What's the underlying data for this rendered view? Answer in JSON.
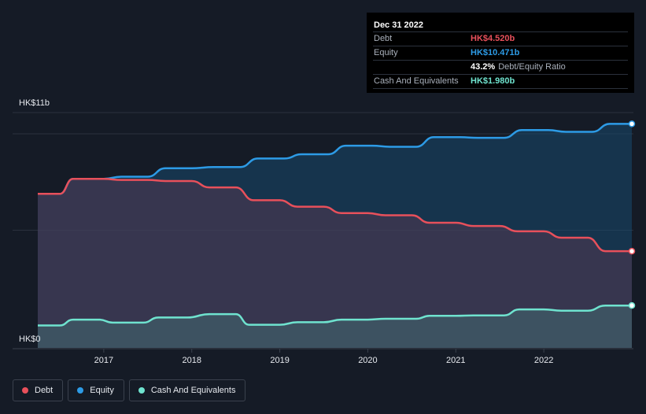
{
  "tooltip": {
    "date": "Dec 31 2022",
    "rows": [
      {
        "label": "Debt",
        "value": "HK$4.520b",
        "color": "#e8505b"
      },
      {
        "label": "Equity",
        "value": "HK$10.471b",
        "color": "#2d9be6"
      },
      {
        "label": "",
        "value": "43.2%",
        "extra": "Debt/Equity Ratio",
        "color": "#ffffff"
      },
      {
        "label": "Cash And Equivalents",
        "value": "HK$1.980b",
        "color": "#6fe3cf"
      }
    ]
  },
  "legend": [
    {
      "label": "Debt",
      "color": "#e8505b"
    },
    {
      "label": "Equity",
      "color": "#2d9be6"
    },
    {
      "label": "Cash And Equivalents",
      "color": "#6fe3cf"
    }
  ],
  "chart_data": {
    "type": "area",
    "title": "",
    "xlabel": "",
    "ylabel": "",
    "y_ticks": [
      "HK$0",
      "HK$11b"
    ],
    "ylim": [
      0,
      11
    ],
    "xlim": [
      2016.25,
      2023.0
    ],
    "x_ticks": [
      "2017",
      "2018",
      "2019",
      "2020",
      "2021",
      "2022"
    ],
    "grid": true,
    "legend_position": "bottom-left",
    "series": [
      {
        "name": "Equity",
        "color": "#2d9be6",
        "points": [
          [
            2016.25,
            7.2
          ],
          [
            2016.5,
            7.2
          ],
          [
            2016.65,
            7.9
          ],
          [
            2017.0,
            7.9
          ],
          [
            2017.2,
            8.0
          ],
          [
            2017.5,
            8.0
          ],
          [
            2017.7,
            8.4
          ],
          [
            2018.0,
            8.4
          ],
          [
            2018.25,
            8.45
          ],
          [
            2018.55,
            8.45
          ],
          [
            2018.75,
            8.85
          ],
          [
            2019.05,
            8.85
          ],
          [
            2019.25,
            9.05
          ],
          [
            2019.55,
            9.05
          ],
          [
            2019.75,
            9.45
          ],
          [
            2020.05,
            9.45
          ],
          [
            2020.25,
            9.4
          ],
          [
            2020.55,
            9.4
          ],
          [
            2020.75,
            9.85
          ],
          [
            2021.05,
            9.85
          ],
          [
            2021.25,
            9.82
          ],
          [
            2021.55,
            9.82
          ],
          [
            2021.75,
            10.18
          ],
          [
            2022.05,
            10.18
          ],
          [
            2022.25,
            10.1
          ],
          [
            2022.55,
            10.1
          ],
          [
            2022.75,
            10.471
          ],
          [
            2023.0,
            10.471
          ]
        ]
      },
      {
        "name": "Debt",
        "color": "#e8505b",
        "points": [
          [
            2016.25,
            7.2
          ],
          [
            2016.5,
            7.2
          ],
          [
            2016.65,
            7.9
          ],
          [
            2017.0,
            7.9
          ],
          [
            2017.2,
            7.85
          ],
          [
            2017.5,
            7.85
          ],
          [
            2017.7,
            7.8
          ],
          [
            2018.0,
            7.8
          ],
          [
            2018.2,
            7.5
          ],
          [
            2018.5,
            7.5
          ],
          [
            2018.7,
            6.9
          ],
          [
            2019.0,
            6.9
          ],
          [
            2019.2,
            6.6
          ],
          [
            2019.5,
            6.6
          ],
          [
            2019.7,
            6.3
          ],
          [
            2020.0,
            6.3
          ],
          [
            2020.2,
            6.2
          ],
          [
            2020.5,
            6.2
          ],
          [
            2020.7,
            5.85
          ],
          [
            2021.0,
            5.85
          ],
          [
            2021.2,
            5.7
          ],
          [
            2021.5,
            5.7
          ],
          [
            2021.7,
            5.45
          ],
          [
            2022.0,
            5.45
          ],
          [
            2022.2,
            5.15
          ],
          [
            2022.5,
            5.15
          ],
          [
            2022.7,
            4.52
          ],
          [
            2023.0,
            4.52
          ]
        ]
      },
      {
        "name": "Cash And Equivalents",
        "color": "#6fe3cf",
        "points": [
          [
            2016.25,
            1.05
          ],
          [
            2016.5,
            1.05
          ],
          [
            2016.65,
            1.32
          ],
          [
            2016.95,
            1.32
          ],
          [
            2017.1,
            1.18
          ],
          [
            2017.45,
            1.18
          ],
          [
            2017.62,
            1.42
          ],
          [
            2017.95,
            1.42
          ],
          [
            2018.2,
            1.58
          ],
          [
            2018.5,
            1.58
          ],
          [
            2018.65,
            1.08
          ],
          [
            2019.0,
            1.08
          ],
          [
            2019.2,
            1.2
          ],
          [
            2019.5,
            1.2
          ],
          [
            2019.7,
            1.32
          ],
          [
            2020.0,
            1.32
          ],
          [
            2020.2,
            1.36
          ],
          [
            2020.55,
            1.36
          ],
          [
            2020.7,
            1.5
          ],
          [
            2021.0,
            1.5
          ],
          [
            2021.2,
            1.52
          ],
          [
            2021.55,
            1.52
          ],
          [
            2021.72,
            1.8
          ],
          [
            2022.0,
            1.8
          ],
          [
            2022.2,
            1.74
          ],
          [
            2022.5,
            1.74
          ],
          [
            2022.7,
            1.98
          ],
          [
            2023.0,
            1.98
          ]
        ]
      }
    ]
  }
}
